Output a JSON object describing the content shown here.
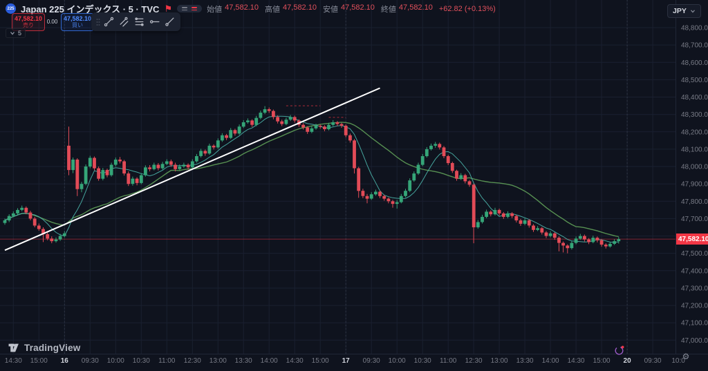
{
  "header": {
    "symbol_badge": "225",
    "title": "Japan 225 インデックス · 5 · TVC",
    "ohlc": {
      "open_label": "始値",
      "open": "47,582.10",
      "high_label": "高値",
      "high": "47,582.10",
      "low_label": "安値",
      "low": "47,582.10",
      "close_label": "終値",
      "close": "47,582.10",
      "change": "+62.82 (+0.13%)"
    }
  },
  "trade": {
    "sell_price": "47,582.10",
    "sell_label": "売り",
    "spread": "0.00",
    "buy_price": "47,582.10",
    "buy_label": "買い"
  },
  "toolbar": {
    "tools": [
      "trend-line",
      "parallel-channel",
      "fib-retracement",
      "horizontal-ray",
      "ray"
    ]
  },
  "legend": {
    "indicator_count": "5"
  },
  "currency": {
    "selected": "JPY"
  },
  "attribution": {
    "brand": "TradingView"
  },
  "chart_data": {
    "type": "candlestick",
    "title": "Japan 225 インデックス",
    "exchange": "TVC",
    "interval": "5",
    "currency": "JPY",
    "ylim": [
      47000,
      48800
    ],
    "last_price": 47582.1,
    "last_price_label": "47,582.10",
    "change_label": "+62.82 (+0.13%)",
    "colors": {
      "up": "#35a578",
      "down": "#e24b57",
      "accent_red": "#f23645",
      "trendline": "#ffffff",
      "ma_fast": "#4db6ac",
      "ma_slow": "#5f9e58",
      "grid": "#1a2030",
      "axis_text": "#787b86"
    },
    "ma_fast": {
      "period": 7,
      "color": "#4db6ac"
    },
    "ma_slow": {
      "period": 25,
      "color": "#5f9e58"
    },
    "trendline": {
      "i1": 0,
      "p1": 47518,
      "i2": 88,
      "p2": 48452
    },
    "price_markers": [
      {
        "p": 48350,
        "i1": 66,
        "i2": 74
      },
      {
        "p": 48283,
        "i1": 76,
        "i2": 80
      }
    ],
    "y_axis": {
      "ticks": [
        {
          "v": 48800,
          "t": "48,800.00"
        },
        {
          "v": 48700,
          "t": "48,700.00"
        },
        {
          "v": 48600,
          "t": "48,600.00"
        },
        {
          "v": 48500,
          "t": "48,500.00"
        },
        {
          "v": 48400,
          "t": "48,400.00"
        },
        {
          "v": 48300,
          "t": "48,300.00"
        },
        {
          "v": 48200,
          "t": "48,200.00"
        },
        {
          "v": 48100,
          "t": "48,100.00"
        },
        {
          "v": 48000,
          "t": "48,000.00"
        },
        {
          "v": 47900,
          "t": "47,900.00"
        },
        {
          "v": 47800,
          "t": "47,800.00"
        },
        {
          "v": 47700,
          "t": "47,700.00"
        },
        {
          "v": 47600,
          "t": "47,600.00"
        },
        {
          "v": 47500,
          "t": "47,500.00"
        },
        {
          "v": 47400,
          "t": "47,400.00"
        },
        {
          "v": 47300,
          "t": "47,300.00"
        },
        {
          "v": 47200,
          "t": "47,200.00"
        },
        {
          "v": 47100,
          "t": "47,100.00"
        },
        {
          "v": 47000,
          "t": "47,000.00"
        }
      ]
    },
    "x_axis": {
      "labels": [
        {
          "i": 2,
          "t": "14:30"
        },
        {
          "i": 8,
          "t": "15:00"
        },
        {
          "i": 14,
          "t": "16",
          "b": true
        },
        {
          "i": 20,
          "t": "09:30"
        },
        {
          "i": 26,
          "t": "10:00"
        },
        {
          "i": 32,
          "t": "10:30"
        },
        {
          "i": 38,
          "t": "11:00"
        },
        {
          "i": 44,
          "t": "12:30"
        },
        {
          "i": 50,
          "t": "13:00"
        },
        {
          "i": 56,
          "t": "13:30"
        },
        {
          "i": 62,
          "t": "14:00"
        },
        {
          "i": 68,
          "t": "14:30"
        },
        {
          "i": 74,
          "t": "15:00"
        },
        {
          "i": 80,
          "t": "17",
          "b": true
        },
        {
          "i": 86,
          "t": "09:30"
        },
        {
          "i": 92,
          "t": "10:00"
        },
        {
          "i": 98,
          "t": "10:30"
        },
        {
          "i": 104,
          "t": "11:00"
        },
        {
          "i": 110,
          "t": "12:30"
        },
        {
          "i": 116,
          "t": "13:00"
        },
        {
          "i": 122,
          "t": "13:30"
        },
        {
          "i": 128,
          "t": "14:00"
        },
        {
          "i": 134,
          "t": "14:30"
        },
        {
          "i": 140,
          "t": "15:00"
        },
        {
          "i": 146,
          "t": "20",
          "b": true
        },
        {
          "i": 152,
          "t": "09:30"
        },
        {
          "i": 158,
          "t": "10:0"
        }
      ]
    },
    "candles": [
      [
        47675,
        47700,
        47665,
        47690
      ],
      [
        47690,
        47725,
        47680,
        47715
      ],
      [
        47715,
        47742,
        47708,
        47730
      ],
      [
        47730,
        47760,
        47722,
        47750
      ],
      [
        47750,
        47775,
        47742,
        47762
      ],
      [
        47762,
        47770,
        47725,
        47735
      ],
      [
        47735,
        47745,
        47690,
        47700
      ],
      [
        47700,
        47710,
        47650,
        47660
      ],
      [
        47660,
        47672,
        47630,
        47640
      ],
      [
        47640,
        47650,
        47565,
        47610
      ],
      [
        47610,
        47622,
        47575,
        47585
      ],
      [
        47585,
        47598,
        47558,
        47570
      ],
      [
        47570,
        47592,
        47562,
        47580
      ],
      [
        47580,
        47612,
        47572,
        47600
      ],
      [
        47600,
        47628,
        47592,
        47615
      ],
      [
        48120,
        48230,
        47950,
        47980
      ],
      [
        47980,
        48052,
        47962,
        48040
      ],
      [
        48040,
        48048,
        47830,
        47870
      ],
      [
        47870,
        47912,
        47852,
        47900
      ],
      [
        47900,
        48012,
        47892,
        48000
      ],
      [
        48000,
        48062,
        47990,
        48050
      ],
      [
        48050,
        48058,
        47978,
        47990
      ],
      [
        47990,
        48000,
        47918,
        47930
      ],
      [
        47930,
        47992,
        47920,
        47980
      ],
      [
        47980,
        47988,
        47938,
        47950
      ],
      [
        47950,
        48022,
        47942,
        48010
      ],
      [
        48010,
        48052,
        48000,
        48040
      ],
      [
        48040,
        48055,
        48018,
        48030
      ],
      [
        48030,
        48038,
        47948,
        47960
      ],
      [
        47960,
        47972,
        47888,
        47900
      ],
      [
        47900,
        47942,
        47890,
        47930
      ],
      [
        47930,
        47938,
        47892,
        47905
      ],
      [
        47905,
        47962,
        47898,
        47950
      ],
      [
        47950,
        48007,
        47942,
        47995
      ],
      [
        47995,
        48008,
        47972,
        47985
      ],
      [
        47985,
        48022,
        47978,
        48010
      ],
      [
        48010,
        48020,
        47978,
        47990
      ],
      [
        47990,
        48027,
        47982,
        48015
      ],
      [
        48015,
        48042,
        48008,
        48030
      ],
      [
        48030,
        48040,
        47998,
        48010
      ],
      [
        48010,
        48022,
        47972,
        47985
      ],
      [
        47985,
        48012,
        47978,
        48000
      ],
      [
        48000,
        48022,
        47992,
        48010
      ],
      [
        48010,
        48018,
        47982,
        47995
      ],
      [
        47995,
        48042,
        47988,
        48030
      ],
      [
        48030,
        48072,
        48022,
        48060
      ],
      [
        48060,
        48102,
        48052,
        48090
      ],
      [
        48090,
        48098,
        48062,
        48075
      ],
      [
        48075,
        48132,
        48068,
        48120
      ],
      [
        48120,
        48128,
        48098,
        48110
      ],
      [
        48110,
        48162,
        48102,
        48150
      ],
      [
        48150,
        48192,
        48142,
        48180
      ],
      [
        48180,
        48188,
        48152,
        48165
      ],
      [
        48165,
        48222,
        48158,
        48210
      ],
      [
        48210,
        48218,
        48178,
        48190
      ],
      [
        48190,
        48242,
        48182,
        48230
      ],
      [
        48230,
        48267,
        48222,
        48255
      ],
      [
        48255,
        48277,
        48247,
        48265
      ],
      [
        48265,
        48272,
        48228,
        48240
      ],
      [
        48240,
        48292,
        48232,
        48280
      ],
      [
        48280,
        48322,
        48272,
        48310
      ],
      [
        48310,
        48348,
        48302,
        48330
      ],
      [
        48330,
        48340,
        48308,
        48320
      ],
      [
        48320,
        48328,
        48272,
        48285
      ],
      [
        48285,
        48295,
        48248,
        48260
      ],
      [
        48260,
        48270,
        48233,
        48245
      ],
      [
        48245,
        48282,
        48238,
        48270
      ],
      [
        48270,
        48297,
        48262,
        48285
      ],
      [
        48285,
        48293,
        48253,
        48265
      ],
      [
        48265,
        48272,
        48228,
        48240
      ],
      [
        48240,
        48250,
        48213,
        48225
      ],
      [
        48225,
        48232,
        48188,
        48200
      ],
      [
        48200,
        48232,
        48192,
        48220
      ],
      [
        48220,
        48247,
        48212,
        48235
      ],
      [
        48235,
        48242,
        48218,
        48230
      ],
      [
        48230,
        48238,
        48203,
        48215
      ],
      [
        48215,
        48252,
        48208,
        48240
      ],
      [
        48240,
        48267,
        48232,
        48255
      ],
      [
        48255,
        48262,
        48233,
        48245
      ],
      [
        48245,
        48252,
        48223,
        48235
      ],
      [
        48235,
        48242,
        48168,
        48180
      ],
      [
        48180,
        48190,
        48138,
        48150
      ],
      [
        48150,
        48158,
        47960,
        47990
      ],
      [
        47990,
        47998,
        47820,
        47860
      ],
      [
        47860,
        47872,
        47818,
        47830
      ],
      [
        47830,
        47842,
        47788,
        47815
      ],
      [
        47815,
        47852,
        47808,
        47840
      ],
      [
        47840,
        47867,
        47832,
        47855
      ],
      [
        47855,
        47862,
        47818,
        47830
      ],
      [
        47830,
        47838,
        47803,
        47815
      ],
      [
        47815,
        47822,
        47788,
        47800
      ],
      [
        47800,
        47808,
        47763,
        47785
      ],
      [
        47785,
        47807,
        47758,
        47795
      ],
      [
        47795,
        47842,
        47788,
        47830
      ],
      [
        47830,
        47872,
        47822,
        47860
      ],
      [
        47860,
        47932,
        47852,
        47920
      ],
      [
        47920,
        47972,
        47912,
        47960
      ],
      [
        47960,
        48022,
        47952,
        48010
      ],
      [
        48010,
        48072,
        48002,
        48060
      ],
      [
        48060,
        48112,
        48052,
        48100
      ],
      [
        48100,
        48132,
        48092,
        48120
      ],
      [
        48120,
        48142,
        48108,
        48130
      ],
      [
        48130,
        48138,
        48098,
        48110
      ],
      [
        48110,
        48118,
        48048,
        48060
      ],
      [
        48060,
        48068,
        48008,
        48020
      ],
      [
        48020,
        48028,
        47963,
        47975
      ],
      [
        47975,
        47982,
        47918,
        47930
      ],
      [
        47930,
        47962,
        47922,
        47950
      ],
      [
        47950,
        47958,
        47903,
        47915
      ],
      [
        47915,
        47922,
        47883,
        47895
      ],
      [
        47895,
        47902,
        47558,
        47650
      ],
      [
        47650,
        47692,
        47642,
        47680
      ],
      [
        47680,
        47722,
        47672,
        47710
      ],
      [
        47710,
        47752,
        47702,
        47740
      ],
      [
        47740,
        47748,
        47713,
        47725
      ],
      [
        47725,
        47762,
        47718,
        47750
      ],
      [
        47750,
        47758,
        47718,
        47730
      ],
      [
        47730,
        47738,
        47698,
        47710
      ],
      [
        47710,
        47742,
        47702,
        47730
      ],
      [
        47730,
        47737,
        47703,
        47715
      ],
      [
        47715,
        47722,
        47678,
        47690
      ],
      [
        47690,
        47698,
        47658,
        47670
      ],
      [
        47670,
        47702,
        47662,
        47690
      ],
      [
        47690,
        47697,
        47648,
        47660
      ],
      [
        47660,
        47668,
        47623,
        47635
      ],
      [
        47635,
        47657,
        47628,
        47645
      ],
      [
        47645,
        47652,
        47608,
        47620
      ],
      [
        47620,
        47628,
        47588,
        47600
      ],
      [
        47600,
        47627,
        47592,
        47615
      ],
      [
        47615,
        47622,
        47578,
        47590
      ],
      [
        47590,
        47598,
        47512,
        47560
      ],
      [
        47560,
        47568,
        47505,
        47545
      ],
      [
        47545,
        47552,
        47500,
        47530
      ],
      [
        47530,
        47572,
        47522,
        47560
      ],
      [
        47560,
        47597,
        47552,
        47585
      ],
      [
        47585,
        47612,
        47578,
        47600
      ],
      [
        47600,
        47608,
        47568,
        47580
      ],
      [
        47580,
        47588,
        47553,
        47565
      ],
      [
        47565,
        47602,
        47558,
        47590
      ],
      [
        47590,
        47597,
        47563,
        47575
      ],
      [
        47575,
        47582,
        47538,
        47550
      ],
      [
        47550,
        47558,
        47528,
        47540
      ],
      [
        47540,
        47567,
        47533,
        47555
      ],
      [
        47555,
        47582,
        47548,
        47570
      ],
      [
        47570,
        47594,
        47556,
        47582.1
      ]
    ]
  }
}
